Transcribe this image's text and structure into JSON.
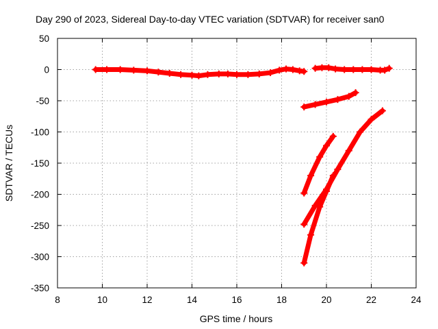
{
  "chart_data": {
    "type": "scatter",
    "title": "Day 290 of 2023, Sidereal Day-to-day VTEC variation (SDTVAR) for receiver san0",
    "xlabel": "GPS time / hours",
    "ylabel": "SDTVAR / TECUs",
    "xlim": [
      8,
      24
    ],
    "ylim": [
      -350,
      50
    ],
    "xticks": [
      8,
      10,
      12,
      14,
      16,
      18,
      20,
      22,
      24
    ],
    "yticks": [
      -350,
      -300,
      -250,
      -200,
      -150,
      -100,
      -50,
      0,
      50
    ],
    "grid": true,
    "legend": "none",
    "marker": "plus",
    "color": "#ff0000",
    "series": [
      {
        "x": [
          9.7,
          10.2,
          10.8,
          11.4,
          12.0,
          12.5,
          13.0,
          13.5,
          14.0,
          14.3,
          14.7,
          15.2,
          15.6,
          16.0,
          16.5,
          17.0,
          17.5,
          17.9,
          18.2,
          18.5,
          18.8,
          19.0
        ],
        "y": [
          0,
          0,
          0,
          -1,
          -2,
          -4,
          -6,
          -8,
          -9,
          -10,
          -8,
          -7,
          -7,
          -8,
          -8,
          -7,
          -5,
          -1,
          1,
          0,
          -2,
          -3
        ]
      },
      {
        "x": [
          19.5,
          19.8,
          20.1,
          20.4,
          20.8,
          21.2,
          21.6,
          22.0,
          22.4,
          22.6,
          22.8
        ],
        "y": [
          2,
          3,
          3,
          1,
          0,
          0,
          0,
          0,
          -1,
          -1,
          2
        ]
      },
      {
        "x": [
          19.0,
          19.5,
          20.0,
          20.5,
          21.0,
          21.3
        ],
        "y": [
          -60,
          -56,
          -52,
          -48,
          -43,
          -37
        ]
      },
      {
        "x": [
          19.0,
          19.3,
          19.7,
          20.0,
          20.3
        ],
        "y": [
          -198,
          -170,
          -140,
          -122,
          -107
        ]
      },
      {
        "x": [
          19.0,
          19.5,
          20.0,
          20.5,
          21.0,
          21.5,
          22.0,
          22.5
        ],
        "y": [
          -248,
          -218,
          -192,
          -160,
          -130,
          -100,
          -80,
          -66
        ]
      },
      {
        "x": [
          19.0,
          19.3,
          19.7,
          20.0,
          20.3
        ],
        "y": [
          -310,
          -265,
          -220,
          -195,
          -170
        ]
      }
    ]
  }
}
